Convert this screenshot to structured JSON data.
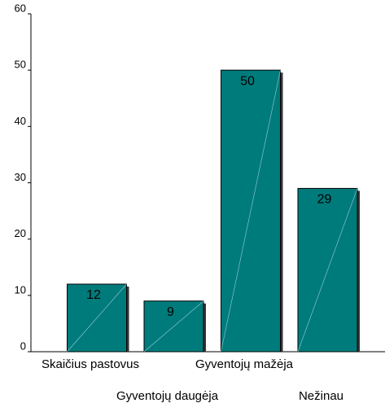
{
  "chart_data": {
    "type": "bar",
    "categories": [
      "Skaičius pastovus",
      "Gyventojų daugėja",
      "Gyventojų mažėja",
      "Nežinau"
    ],
    "values": [
      12,
      9,
      50,
      29
    ],
    "color": "#007b7b",
    "ylim": [
      0,
      60
    ],
    "yticks": [
      0,
      10,
      20,
      30,
      40,
      50,
      60
    ],
    "grid": false
  }
}
